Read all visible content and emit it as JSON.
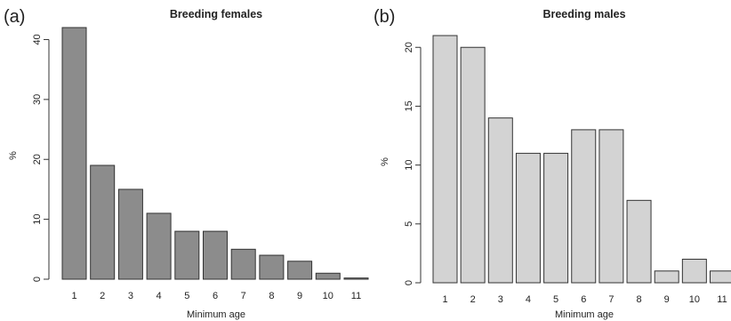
{
  "chart_data": [
    {
      "type": "bar",
      "panel_label": "(a)",
      "title": "Breeding females",
      "xlabel": "Minimum age",
      "ylabel": "%",
      "categories": [
        "1",
        "2",
        "3",
        "4",
        "5",
        "6",
        "7",
        "8",
        "9",
        "10",
        "11"
      ],
      "values": [
        42,
        19,
        15,
        11,
        8,
        8,
        5,
        4,
        3,
        1,
        0.2
      ],
      "ylim": [
        0,
        42
      ],
      "yticks": [
        0,
        10,
        20,
        30,
        40
      ],
      "bar_color": "#8c8c8c",
      "grid": false,
      "legend": "none"
    },
    {
      "type": "bar",
      "panel_label": "(b)",
      "title": "Breeding males",
      "xlabel": "Minimum age",
      "ylabel": "%",
      "categories": [
        "1",
        "2",
        "3",
        "4",
        "5",
        "6",
        "7",
        "8",
        "9",
        "10",
        "11"
      ],
      "values": [
        21,
        20,
        14,
        11,
        11,
        13,
        13,
        7,
        1,
        2,
        1
      ],
      "ylim": [
        0,
        21
      ],
      "yticks": [
        0,
        5,
        10,
        15,
        20
      ],
      "bar_color": "#d3d3d3",
      "grid": false,
      "legend": "none"
    }
  ]
}
